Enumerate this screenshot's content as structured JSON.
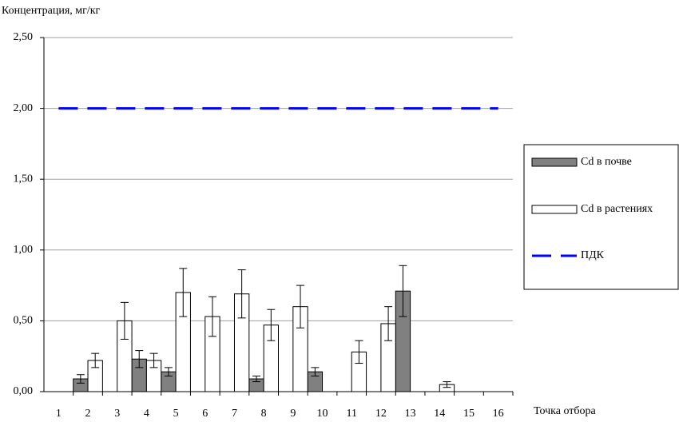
{
  "chart_data": {
    "type": "bar",
    "y_label": "Концентрация, мг/кг",
    "x_label": "Точка отбора",
    "categories": [
      "1",
      "2",
      "3",
      "4",
      "5",
      "6",
      "7",
      "8",
      "9",
      "10",
      "11",
      "12",
      "13",
      "14",
      "15",
      "16"
    ],
    "ylim": [
      0,
      2.5
    ],
    "yticks": [
      {
        "value": 0,
        "label": "0,00"
      },
      {
        "value": 0.5,
        "label": "0,50"
      },
      {
        "value": 1,
        "label": "1,00"
      },
      {
        "value": 1.5,
        "label": "1,50"
      },
      {
        "value": 2,
        "label": "2,00"
      },
      {
        "value": 2.5,
        "label": "2,50"
      }
    ],
    "grid": true,
    "series": [
      {
        "name": "Cd в почве",
        "type": "bar",
        "color": "#808080",
        "values": [
          null,
          0.09,
          null,
          0.23,
          0.14,
          null,
          null,
          0.09,
          null,
          0.14,
          null,
          null,
          0.71,
          null,
          null,
          null
        ],
        "errors": [
          null,
          0.03,
          null,
          0.06,
          0.03,
          null,
          null,
          0.02,
          null,
          0.03,
          null,
          null,
          0.18,
          null,
          null,
          null
        ]
      },
      {
        "name": "Cd в растениях",
        "type": "bar",
        "color": "#ffffff",
        "values": [
          null,
          0.22,
          0.5,
          0.22,
          0.7,
          0.53,
          0.69,
          0.47,
          0.6,
          null,
          0.28,
          0.48,
          null,
          0.05,
          null,
          null
        ],
        "errors": [
          null,
          0.05,
          0.13,
          0.05,
          0.17,
          0.14,
          0.17,
          0.11,
          0.15,
          null,
          0.08,
          0.12,
          null,
          0.02,
          null,
          null
        ]
      },
      {
        "name": "ПДК",
        "type": "line",
        "color": "#0000ff",
        "values": [
          2,
          2,
          2,
          2,
          2,
          2,
          2,
          2,
          2,
          2,
          2,
          2,
          2,
          2,
          2,
          2
        ]
      }
    ]
  }
}
